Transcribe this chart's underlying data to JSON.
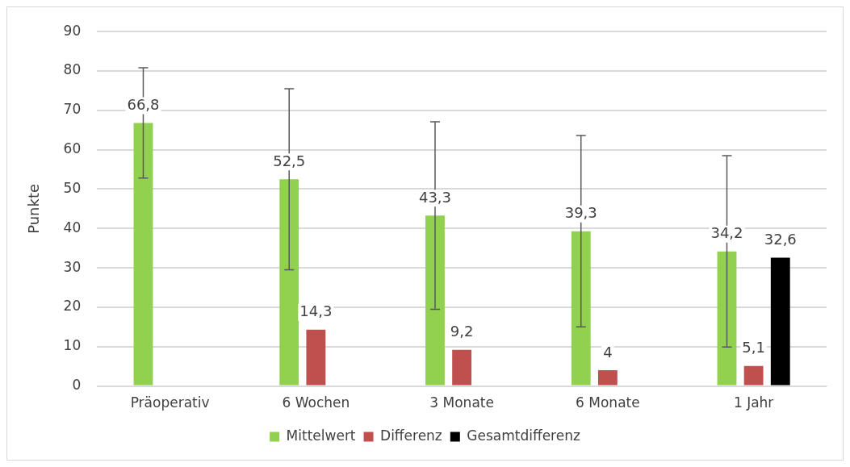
{
  "chart_data": {
    "type": "bar",
    "ylabel": "Punkte",
    "categories": [
      "Präoperativ",
      "6 Wochen",
      "3 Monate",
      "6 Monate",
      "1 Jahr"
    ],
    "series": [
      {
        "name": "Mittelwert",
        "color": "#92d050",
        "values": [
          66.8,
          52.5,
          43.3,
          39.3,
          34.2
        ],
        "value_labels": [
          "66,8",
          "52,5",
          "43,3",
          "39,3",
          "34,2"
        ],
        "errors": [
          14,
          23,
          23.8,
          24.3,
          24.3
        ]
      },
      {
        "name": "Differenz",
        "color": "#c0504d",
        "values": [
          null,
          14.3,
          9.2,
          4,
          5.1
        ],
        "value_labels": [
          null,
          "14,3",
          "9,2",
          "4",
          "5,1"
        ]
      },
      {
        "name": "Gesamtdifferenz",
        "color": "#000000",
        "values": [
          null,
          null,
          null,
          null,
          32.6
        ],
        "value_labels": [
          null,
          null,
          null,
          null,
          "32,6"
        ]
      }
    ],
    "ylim": [
      0,
      90
    ],
    "yticks": [
      0,
      10,
      20,
      30,
      40,
      50,
      60,
      70,
      80,
      90
    ],
    "grid": "y",
    "legend": "bottom"
  }
}
